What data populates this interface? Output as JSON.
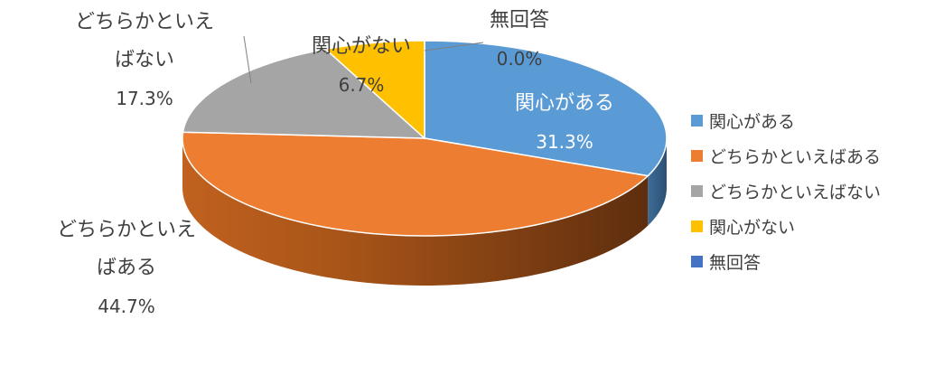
{
  "chart_data": {
    "type": "pie3d",
    "categories": [
      "関心がある",
      "どちらかといえばある",
      "どちらかといえばない",
      "関心がない",
      "無回答"
    ],
    "values": [
      31.3,
      44.7,
      17.3,
      6.7,
      0.0
    ],
    "value_labels": [
      "31.3%",
      "44.7%",
      "17.3%",
      "6.7%",
      "0.0%"
    ],
    "colors": [
      "#5b9bd5",
      "#ed7d31",
      "#a5a5a5",
      "#ffc000",
      "#4472c4"
    ],
    "legend": "right"
  }
}
